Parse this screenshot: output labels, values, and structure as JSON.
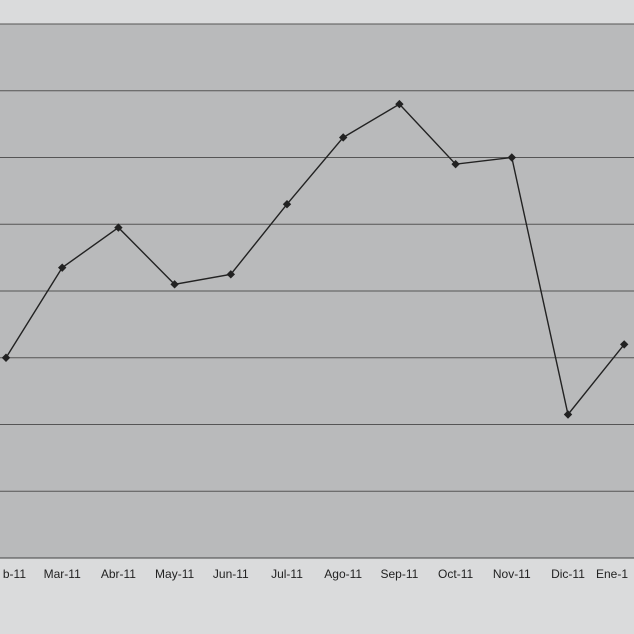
{
  "chart_data": {
    "type": "line",
    "categories": [
      "b-11",
      "Mar-11",
      "Abr-11",
      "May-11",
      "Jun-11",
      "Jul-11",
      "Ago-11",
      "Sep-11",
      "Oct-11",
      "Nov-11",
      "Dic-11",
      "Ene-1"
    ],
    "values": [
      3.0,
      4.35,
      4.95,
      4.1,
      4.25,
      5.3,
      6.3,
      6.8,
      5.9,
      6.0,
      2.15,
      3.2
    ],
    "color": "#222222",
    "ylim": [
      0,
      8
    ],
    "grid_values": [
      1,
      2,
      3,
      4,
      5,
      6,
      7,
      8
    ],
    "grid": true
  }
}
